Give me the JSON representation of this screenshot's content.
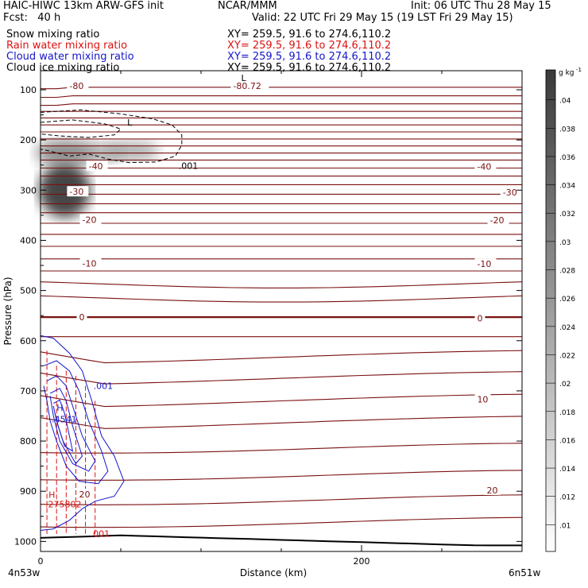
{
  "header": {
    "left1": "HAIC-HIWC 13km ARW-GFS init",
    "center1": "NCAR/MMM",
    "right1": "Init: 06 UTC Thu 28 May 15",
    "left2": "Fcst:   40 h",
    "right2": "Valid: 22 UTC Fri 29 May 15 (19 LST Fri 29 May 15)",
    "fields": [
      {
        "name": "Snow mixing ratio",
        "xy": "XY= 259.5, 91.6 to 274.6,110.2",
        "color": "#000000"
      },
      {
        "name": "Rain water mixing ratio",
        "xy": "XY= 259.5, 91.6 to 274.6,110.2",
        "color": "#dd1111"
      },
      {
        "name": "Cloud water mixing ratio",
        "xy": "XY= 259.5, 91.6 to 274.6,110.2",
        "color": "#1515cc"
      },
      {
        "name": "Cloud ice mixing ratio",
        "xy": "XY= 259.5, 91.6 to 274.6,110.2",
        "color": "#000000"
      }
    ]
  },
  "chart_data": {
    "type": "line",
    "subtype": "vertical cross-section contour plot",
    "ylabel": "Pressure (hPa)",
    "xlabel": "Distance (km)",
    "x_start_label": "4n53w",
    "x_end_label": "6n51w",
    "xlim": [
      0,
      300
    ],
    "x_ticks": [
      0,
      200
    ],
    "ylim": [
      1020,
      62
    ],
    "y_ticks": [
      100,
      200,
      300,
      400,
      500,
      600,
      700,
      800,
      900,
      1000
    ],
    "colorbar": {
      "unit": "g kg",
      "unit_sup": "-1",
      "ticks": [
        ".01",
        ".012",
        ".014",
        ".016",
        ".018",
        ".02",
        ".022",
        ".024",
        ".026",
        ".028",
        ".03",
        ".032",
        ".034",
        ".036",
        ".038",
        ".04"
      ]
    },
    "series": [
      {
        "name": "Snow mixing ratio",
        "style": "shaded",
        "color": "#555555"
      },
      {
        "name": "Rain water mixing ratio",
        "style": "dashed contours",
        "color": "#dd1111"
      },
      {
        "name": "Cloud water mixing ratio",
        "style": "solid contours",
        "color": "#1515cc"
      },
      {
        "name": "Cloud ice mixing ratio",
        "style": "dashed contours",
        "color": "#000000"
      }
    ],
    "isotherms": {
      "color": "#7a1010",
      "pressure_levels": [
        95,
        112,
        128,
        143,
        156,
        170,
        184,
        198,
        212,
        226,
        240,
        256,
        272,
        289,
        308,
        327,
        345,
        366,
        388,
        412,
        437,
        461,
        487,
        515,
        553,
        592,
        633,
        675,
        720,
        764,
        814,
        868,
        917,
        962
      ],
      "labels": [
        {
          "text": "-80",
          "x": 18,
          "p": 92
        },
        {
          "text": "-80.72",
          "x": 120,
          "p": 92
        },
        {
          "text": "-40",
          "x": 30,
          "p": 252
        },
        {
          "text": "-40",
          "x": 272,
          "p": 253
        },
        {
          "text": "-30",
          "x": 18,
          "p": 303
        },
        {
          "text": "-30",
          "x": 288,
          "p": 304
        },
        {
          "text": "-20",
          "x": 26,
          "p": 359
        },
        {
          "text": "-20",
          "x": 280,
          "p": 360
        },
        {
          "text": "-10",
          "x": 26,
          "p": 446
        },
        {
          "text": "-10",
          "x": 272,
          "p": 447
        },
        {
          "text": "0",
          "x": 24,
          "p": 553
        },
        {
          "text": "0",
          "x": 272,
          "p": 555
        },
        {
          "text": "10",
          "x": 272,
          "p": 717
        },
        {
          "text": "20",
          "x": 24,
          "p": 906
        },
        {
          "text": "20",
          "x": 278,
          "p": 898
        }
      ]
    },
    "annotations": [
      {
        "text": ".001",
        "x": 86,
        "p": 251,
        "color": "#000000"
      },
      {
        "text": "L",
        "x": 54,
        "p": 165,
        "color": "#000000"
      },
      {
        "text": "L",
        "x": 125,
        "p": 76,
        "color": "#000000"
      },
      {
        "text": ".001",
        "x": 33,
        "p": 690,
        "color": "#1515cc"
      },
      {
        "text": "H",
        "x": 10,
        "p": 733,
        "color": "#1515cc"
      },
      {
        "text": ".4541",
        "x": 7,
        "p": 756,
        "color": "#1515cc"
      },
      {
        "text": "H",
        "x": 5,
        "p": 907,
        "color": "#dd1111"
      },
      {
        "text": ".275802",
        "x": 3,
        "p": 926,
        "color": "#dd1111"
      },
      {
        "text": ".001",
        "x": 31,
        "p": 984,
        "color": "#dd1111"
      }
    ],
    "grid": false
  }
}
